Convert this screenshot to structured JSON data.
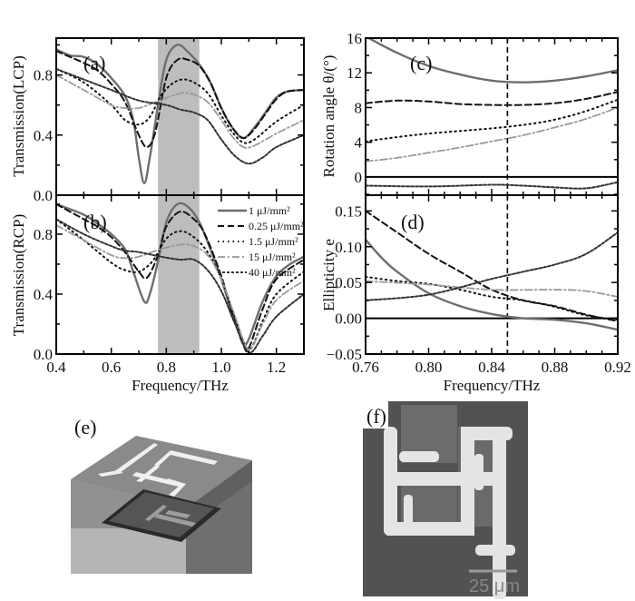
{
  "series_styles": [
    {
      "name": "1 μJ/mm²",
      "color": "#6e6e6e",
      "dash": "",
      "width": 2.4
    },
    {
      "name": "0.25 μJ/mm²",
      "color": "#111111",
      "dash": "7,4",
      "width": 2
    },
    {
      "name": "1.5 μJ/mm²",
      "color": "#111111",
      "dash": "1.5,4",
      "width": 2
    },
    {
      "name": "15 μJ/mm²",
      "color": "#9a9a9a",
      "dash": "8,3,2,3",
      "width": 1.8
    },
    {
      "name": "40 μJ/mm²",
      "color": "#333333",
      "dash": "3,2",
      "width": 2
    }
  ],
  "legend": {
    "entries": [
      "1 μJ/mm²",
      "0.25 μJ/mm²",
      "1.5 μJ/mm²",
      "15 μJ/mm²",
      "40 μJ/mm²"
    ],
    "placement": "top-right of panel (b)"
  },
  "chart_data": [
    {
      "panel": "(a)",
      "type": "line",
      "ylabel": "Transmission(LCP)",
      "xlabel": "",
      "xlim": [
        0.4,
        1.3
      ],
      "ylim": [
        0,
        1.045
      ],
      "xticks": [
        0.4,
        0.6,
        0.8,
        1.0,
        1.2
      ],
      "xtick_labels": [],
      "yticks": [
        0.0,
        0.4,
        0.8
      ],
      "ytick_labels": [
        "0.0",
        "0.4",
        "0.8"
      ],
      "shaded_band": [
        0.77,
        0.92
      ],
      "shade_color": "#bdbdbd",
      "series": [
        {
          "name": "1 μJ/mm²",
          "x": [
            0.4,
            0.45,
            0.5,
            0.55,
            0.6,
            0.65,
            0.68,
            0.7,
            0.72,
            0.74,
            0.77,
            0.8,
            0.84,
            0.88,
            0.92,
            0.96,
            1.0,
            1.04,
            1.08,
            1.12,
            1.16,
            1.2,
            1.24,
            1.3
          ],
          "y": [
            0.97,
            0.93,
            0.92,
            0.87,
            0.78,
            0.66,
            0.5,
            0.25,
            0.08,
            0.25,
            0.6,
            0.9,
            1.0,
            0.95,
            0.87,
            0.75,
            0.58,
            0.45,
            0.38,
            0.45,
            0.55,
            0.65,
            0.69,
            0.7
          ]
        },
        {
          "name": "0.25 μJ/mm²",
          "x": [
            0.4,
            0.45,
            0.5,
            0.55,
            0.6,
            0.65,
            0.7,
            0.73,
            0.76,
            0.8,
            0.84,
            0.88,
            0.92,
            0.96,
            1.0,
            1.04,
            1.08,
            1.12,
            1.16,
            1.2,
            1.24,
            1.3
          ],
          "y": [
            0.96,
            0.92,
            0.88,
            0.83,
            0.74,
            0.62,
            0.4,
            0.32,
            0.42,
            0.78,
            0.9,
            0.9,
            0.86,
            0.75,
            0.58,
            0.45,
            0.38,
            0.44,
            0.54,
            0.64,
            0.69,
            0.7
          ]
        },
        {
          "name": "1.5 μJ/mm²",
          "x": [
            0.4,
            0.5,
            0.6,
            0.65,
            0.7,
            0.74,
            0.78,
            0.82,
            0.86,
            0.9,
            0.95,
            1.0,
            1.04,
            1.08,
            1.12,
            1.2,
            1.3
          ],
          "y": [
            0.84,
            0.75,
            0.6,
            0.5,
            0.47,
            0.52,
            0.66,
            0.74,
            0.77,
            0.75,
            0.68,
            0.53,
            0.42,
            0.35,
            0.37,
            0.49,
            0.6
          ]
        },
        {
          "name": "15 μJ/mm²",
          "x": [
            0.4,
            0.5,
            0.6,
            0.65,
            0.7,
            0.76,
            0.82,
            0.86,
            0.9,
            0.95,
            1.0,
            1.04,
            1.08,
            1.12,
            1.2,
            1.3
          ],
          "y": [
            0.8,
            0.7,
            0.6,
            0.58,
            0.58,
            0.62,
            0.66,
            0.68,
            0.67,
            0.62,
            0.5,
            0.39,
            0.32,
            0.33,
            0.41,
            0.5
          ]
        },
        {
          "name": "40 μJ/mm²",
          "x": [
            0.4,
            0.5,
            0.6,
            0.7,
            0.8,
            0.85,
            0.9,
            0.95,
            1.0,
            1.05,
            1.1,
            1.15,
            1.2,
            1.3
          ],
          "y": [
            0.84,
            0.77,
            0.7,
            0.63,
            0.6,
            0.57,
            0.55,
            0.5,
            0.37,
            0.26,
            0.21,
            0.25,
            0.32,
            0.4
          ]
        }
      ]
    },
    {
      "panel": "(b)",
      "type": "line",
      "ylabel": "Transmission(RCP)",
      "xlabel": "Frequency/THz",
      "xlim": [
        0.4,
        1.3
      ],
      "ylim": [
        0,
        1.06
      ],
      "xticks": [
        0.4,
        0.6,
        0.8,
        1.0,
        1.2
      ],
      "xtick_labels": [
        "0.4",
        "0.6",
        "0.8",
        "1.0",
        "1.2"
      ],
      "yticks": [
        0.0,
        0.4,
        0.8
      ],
      "ytick_labels": [
        "0.0",
        "0.4",
        "0.8"
      ],
      "shaded_band": [
        0.77,
        0.92
      ],
      "shade_color": "#bdbdbd",
      "series": [
        {
          "name": "1 μJ/mm²",
          "x": [
            0.4,
            0.5,
            0.55,
            0.6,
            0.65,
            0.68,
            0.72,
            0.74,
            0.77,
            0.8,
            0.84,
            0.88,
            0.92,
            0.96,
            1.0,
            1.04,
            1.08,
            1.1,
            1.15,
            1.2,
            1.25,
            1.3
          ],
          "y": [
            1.0,
            0.93,
            0.87,
            0.8,
            0.7,
            0.55,
            0.35,
            0.4,
            0.62,
            0.88,
            1.0,
            0.98,
            0.88,
            0.7,
            0.5,
            0.27,
            0.08,
            0.1,
            0.35,
            0.52,
            0.6,
            0.65
          ]
        },
        {
          "name": "0.25 μJ/mm²",
          "x": [
            0.4,
            0.5,
            0.55,
            0.6,
            0.65,
            0.7,
            0.73,
            0.77,
            0.8,
            0.85,
            0.9,
            0.94,
            1.0,
            1.04,
            1.08,
            1.1,
            1.15,
            1.2,
            1.3
          ],
          "y": [
            1.0,
            0.9,
            0.85,
            0.78,
            0.68,
            0.55,
            0.51,
            0.66,
            0.85,
            0.95,
            0.9,
            0.8,
            0.52,
            0.27,
            0.06,
            0.04,
            0.3,
            0.5,
            0.63
          ]
        },
        {
          "name": "1.5 μJ/mm²",
          "x": [
            0.4,
            0.5,
            0.6,
            0.65,
            0.7,
            0.75,
            0.8,
            0.85,
            0.9,
            0.95,
            1.0,
            1.05,
            1.1,
            1.15,
            1.2,
            1.3
          ],
          "y": [
            0.9,
            0.76,
            0.61,
            0.56,
            0.55,
            0.62,
            0.77,
            0.82,
            0.78,
            0.68,
            0.5,
            0.24,
            0.03,
            0.22,
            0.4,
            0.55
          ]
        },
        {
          "name": "15 μJ/mm²",
          "x": [
            0.4,
            0.5,
            0.6,
            0.65,
            0.7,
            0.78,
            0.85,
            0.9,
            0.95,
            1.0,
            1.05,
            1.1,
            1.15,
            1.2,
            1.3
          ],
          "y": [
            0.86,
            0.76,
            0.66,
            0.64,
            0.65,
            0.7,
            0.73,
            0.72,
            0.66,
            0.5,
            0.25,
            0.03,
            0.2,
            0.36,
            0.49
          ]
        },
        {
          "name": "40 μJ/mm²",
          "x": [
            0.4,
            0.5,
            0.6,
            0.65,
            0.7,
            0.78,
            0.85,
            0.9,
            0.95,
            1.0,
            1.05,
            1.1,
            1.15,
            1.2,
            1.3
          ],
          "y": [
            0.9,
            0.8,
            0.72,
            0.69,
            0.68,
            0.65,
            0.63,
            0.63,
            0.56,
            0.42,
            0.2,
            0.01,
            0.12,
            0.25,
            0.4
          ]
        }
      ]
    },
    {
      "panel": "(c)",
      "type": "line",
      "ylabel": "Rotation angle θ/(°)",
      "xlabel": "",
      "xlim": [
        0.76,
        0.92
      ],
      "ylim": [
        -2.1,
        16
      ],
      "xticks": [
        0.76,
        0.8,
        0.84,
        0.88,
        0.92
      ],
      "xtick_labels": [],
      "yticks": [
        0,
        4,
        8,
        12,
        16
      ],
      "ytick_labels": [
        "0",
        "4",
        "8",
        "12",
        "16"
      ],
      "zero_line": true,
      "vline": 0.85,
      "series": [
        {
          "name": "1 μJ/mm²",
          "x": [
            0.76,
            0.78,
            0.8,
            0.82,
            0.84,
            0.86,
            0.88,
            0.9,
            0.92
          ],
          "y": [
            16.2,
            14.3,
            12.8,
            11.8,
            11.1,
            10.9,
            11.1,
            11.6,
            12.3
          ]
        },
        {
          "name": "0.25 μJ/mm²",
          "x": [
            0.76,
            0.78,
            0.8,
            0.82,
            0.84,
            0.86,
            0.88,
            0.9,
            0.92
          ],
          "y": [
            8.5,
            8.8,
            8.7,
            8.4,
            8.3,
            8.3,
            8.5,
            9.0,
            9.8
          ]
        },
        {
          "name": "1.5 μJ/mm²",
          "x": [
            0.76,
            0.78,
            0.8,
            0.82,
            0.84,
            0.86,
            0.88,
            0.9,
            0.92
          ],
          "y": [
            4.1,
            4.6,
            5.0,
            5.3,
            5.6,
            6.0,
            6.6,
            7.6,
            8.9
          ]
        },
        {
          "name": "15 μJ/mm²",
          "x": [
            0.76,
            0.78,
            0.8,
            0.82,
            0.84,
            0.86,
            0.88,
            0.9,
            0.92
          ],
          "y": [
            1.8,
            2.2,
            2.8,
            3.4,
            4.1,
            4.8,
            5.7,
            6.7,
            8.0
          ]
        },
        {
          "name": "40 μJ/mm²",
          "x": [
            0.76,
            0.8,
            0.84,
            0.86,
            0.88,
            0.9,
            0.92
          ],
          "y": [
            -1.0,
            -1.1,
            -0.9,
            -1.0,
            -1.2,
            -1.3,
            -0.6
          ]
        }
      ]
    },
    {
      "panel": "(d)",
      "type": "line",
      "ylabel": "Ellipticity e",
      "xlabel": "Frequency/THz",
      "xlim": [
        0.76,
        0.92
      ],
      "ylim": [
        -0.05,
        0.172
      ],
      "xticks": [
        0.76,
        0.8,
        0.84,
        0.88,
        0.92
      ],
      "xtick_labels": [
        "0.76",
        "0.80",
        "0.84",
        "0.88",
        "0.92"
      ],
      "yticks": [
        -0.05,
        0,
        0.05,
        0.1,
        0.15
      ],
      "ytick_labels": [
        "−0.05",
        "0.00",
        "0.05",
        "0.10",
        "0.15"
      ],
      "zero_line": true,
      "vline": 0.85,
      "series": [
        {
          "name": "1 μJ/mm²",
          "x": [
            0.76,
            0.77,
            0.78,
            0.8,
            0.82,
            0.84,
            0.86,
            0.88,
            0.9,
            0.92
          ],
          "y": [
            0.11,
            0.085,
            0.065,
            0.035,
            0.017,
            0.006,
            0.0,
            -0.002,
            -0.007,
            -0.016
          ]
        },
        {
          "name": "0.25 μJ/mm²",
          "x": [
            0.76,
            0.78,
            0.8,
            0.82,
            0.84,
            0.86,
            0.88,
            0.9,
            0.92
          ],
          "y": [
            0.15,
            0.12,
            0.09,
            0.065,
            0.04,
            0.025,
            0.017,
            0.005,
            -0.004
          ]
        },
        {
          "name": "1.5 μJ/mm²",
          "x": [
            0.76,
            0.78,
            0.8,
            0.82,
            0.84,
            0.86,
            0.88,
            0.9,
            0.92
          ],
          "y": [
            0.058,
            0.052,
            0.048,
            0.04,
            0.03,
            0.025,
            0.016,
            0.004,
            -0.002
          ]
        },
        {
          "name": "15 μJ/mm²",
          "x": [
            0.76,
            0.8,
            0.84,
            0.88,
            0.9,
            0.92
          ],
          "y": [
            0.052,
            0.047,
            0.04,
            0.04,
            0.038,
            0.03
          ]
        },
        {
          "name": "40 μJ/mm²",
          "x": [
            0.76,
            0.8,
            0.84,
            0.86,
            0.88,
            0.9,
            0.92
          ],
          "y": [
            0.025,
            0.033,
            0.055,
            0.065,
            0.075,
            0.09,
            0.12
          ]
        }
      ]
    }
  ],
  "images": {
    "e": {
      "label": "(e)"
    },
    "f": {
      "label": "(f)",
      "scale_bar": "25 μm"
    }
  }
}
